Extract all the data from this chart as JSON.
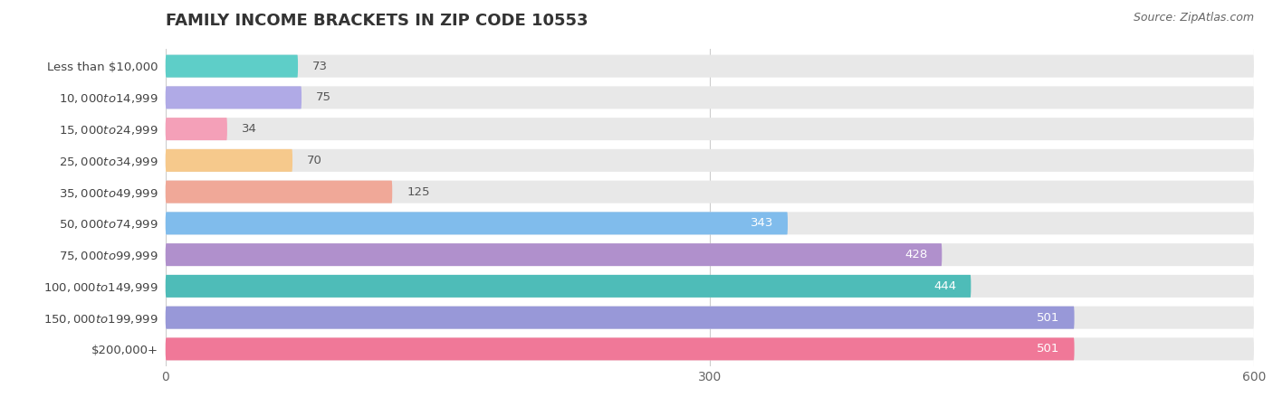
{
  "title": "FAMILY INCOME BRACKETS IN ZIP CODE 10553",
  "source_text": "Source: ZipAtlas.com",
  "categories": [
    "Less than $10,000",
    "$10,000 to $14,999",
    "$15,000 to $24,999",
    "$25,000 to $34,999",
    "$35,000 to $49,999",
    "$50,000 to $74,999",
    "$75,000 to $99,999",
    "$100,000 to $149,999",
    "$150,000 to $199,999",
    "$200,000+"
  ],
  "values": [
    73,
    75,
    34,
    70,
    125,
    343,
    428,
    444,
    501,
    501
  ],
  "bar_colors": [
    "#5ecec8",
    "#b0aae6",
    "#f4a0b8",
    "#f6c98c",
    "#f0a898",
    "#80bcec",
    "#b090cc",
    "#4ebcb8",
    "#9898d8",
    "#f07898"
  ],
  "bar_bg_color": "#e8e8e8",
  "xlim_max": 600,
  "xticks": [
    0,
    300,
    600
  ],
  "background_color": "#ffffff",
  "title_fontsize": 13,
  "label_fontsize": 9.5,
  "value_fontsize": 9.5,
  "source_fontsize": 9
}
